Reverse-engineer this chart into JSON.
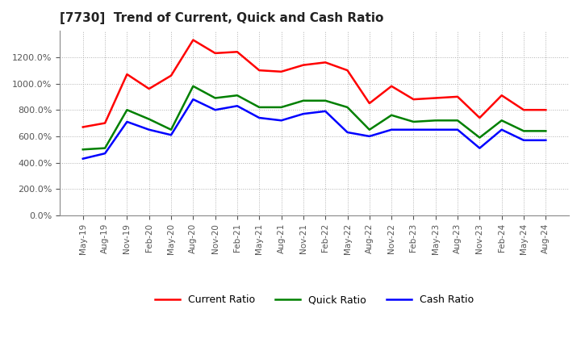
{
  "title": "[7730]  Trend of Current, Quick and Cash Ratio",
  "x_labels": [
    "May-19",
    "Aug-19",
    "Nov-19",
    "Feb-20",
    "May-20",
    "Aug-20",
    "Nov-20",
    "Feb-21",
    "May-21",
    "Aug-21",
    "Nov-21",
    "Feb-22",
    "May-22",
    "Aug-22",
    "Nov-22",
    "Feb-23",
    "May-23",
    "Aug-23",
    "Nov-23",
    "Feb-24",
    "May-24",
    "Aug-24"
  ],
  "current_ratio": [
    670,
    700,
    1070,
    960,
    1060,
    1330,
    1230,
    1240,
    1100,
    1090,
    1140,
    1160,
    1100,
    850,
    980,
    880,
    890,
    900,
    740,
    910,
    800,
    800
  ],
  "quick_ratio": [
    500,
    510,
    800,
    730,
    650,
    980,
    890,
    910,
    820,
    820,
    870,
    870,
    820,
    650,
    760,
    710,
    720,
    720,
    590,
    720,
    640,
    640
  ],
  "cash_ratio": [
    430,
    470,
    710,
    650,
    610,
    880,
    800,
    830,
    740,
    720,
    770,
    790,
    630,
    600,
    650,
    650,
    650,
    650,
    510,
    650,
    570,
    570
  ],
  "current_color": "#ff0000",
  "quick_color": "#008000",
  "cash_color": "#0000ff",
  "ylim": [
    0,
    1400
  ],
  "yticks": [
    0,
    200,
    400,
    600,
    800,
    1000,
    1200
  ],
  "background_color": "#ffffff",
  "grid_color": "#b0b0b0"
}
